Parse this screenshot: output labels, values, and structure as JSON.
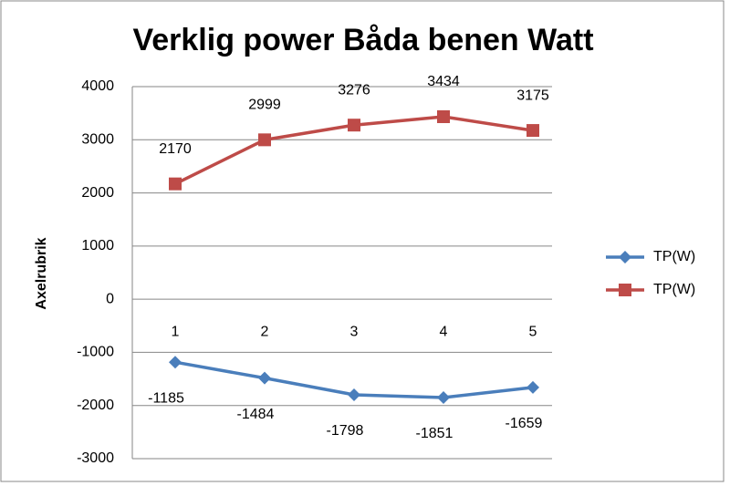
{
  "chart_data": {
    "type": "line",
    "title": "Verklig power Båda benen Watt",
    "y_label": "Axelrubrik",
    "categories": [
      "1",
      "2",
      "3",
      "4",
      "5"
    ],
    "series": [
      {
        "name": "TP(W)",
        "color": "#4a7ebb",
        "marker": "diamond",
        "values": [
          -1185,
          -1484,
          -1798,
          -1851,
          -1659
        ]
      },
      {
        "name": "TP(W)",
        "color": "#be4b48",
        "marker": "square",
        "values": [
          2170,
          2999,
          3276,
          3434,
          3175
        ]
      }
    ],
    "ylim": [
      -3000,
      4000
    ],
    "yticks": [
      -3000,
      -2000,
      -1000,
      0,
      1000,
      2000,
      3000,
      4000
    ],
    "grid": true,
    "legend": "right"
  }
}
